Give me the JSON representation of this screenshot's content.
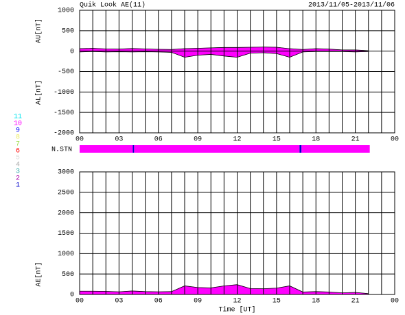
{
  "title": "Quik Look AE(11)",
  "date_range": "2013/11/05-2013/11/06",
  "station_legend": [
    {
      "label": "11",
      "color": "#00e5ee"
    },
    {
      "label": "10",
      "color": "#ff00ff"
    },
    {
      "label": "9",
      "color": "#0000ff"
    },
    {
      "label": "8",
      "color": "#eeee66"
    },
    {
      "label": "7",
      "color": "#99dd44"
    },
    {
      "label": "6",
      "color": "#ff0000"
    },
    {
      "label": "5",
      "color": "#dddddd"
    },
    {
      "label": "4",
      "color": "#aaaaaa"
    },
    {
      "label": "3",
      "color": "#33aaaa"
    },
    {
      "label": "2",
      "color": "#aa00aa"
    },
    {
      "label": "1",
      "color": "#0000cc"
    }
  ],
  "n_stn": {
    "label": "N.STN",
    "segments": [
      {
        "x0": 0,
        "x1": 4.05,
        "color": "#ff00ff"
      },
      {
        "x0": 4.05,
        "x1": 4.15,
        "color": "#0000cc"
      },
      {
        "x0": 4.15,
        "x1": 16.75,
        "color": "#ff00ff"
      },
      {
        "x0": 16.75,
        "x1": 16.9,
        "color": "#0000cc"
      },
      {
        "x0": 16.9,
        "x1": 22.1,
        "color": "#ff00ff"
      }
    ]
  },
  "chart_data": [
    {
      "type": "area",
      "ylabels": [
        "AU[nT]",
        "AL[nT]"
      ],
      "xlim": [
        0,
        24
      ],
      "xticks": [
        {
          "value": 0,
          "label": "00"
        },
        {
          "value": 3,
          "label": "03"
        },
        {
          "value": 6,
          "label": "06"
        },
        {
          "value": 9,
          "label": "09"
        },
        12,
        15,
        18,
        21,
        {
          "value": 24,
          "label": "00"
        }
      ],
      "minor_xticks": [
        1,
        2,
        4,
        5,
        7,
        8,
        10,
        11,
        13,
        14,
        16,
        17,
        19,
        20,
        22,
        23
      ],
      "ylim": [
        -2000,
        1000
      ],
      "yticks": [
        1000,
        500,
        0,
        -500,
        -1000,
        -1500,
        -2000
      ],
      "x": [
        0,
        1,
        2,
        3,
        4,
        5,
        6,
        7,
        8,
        9,
        10,
        11,
        12,
        13,
        14,
        15,
        16,
        17,
        18,
        19,
        20,
        21,
        22
      ],
      "series": [
        {
          "color": "#ff00ff",
          "values": [
            60,
            70,
            55,
            50,
            65,
            55,
            45,
            40,
            60,
            70,
            80,
            90,
            90,
            95,
            100,
            95,
            60,
            40,
            60,
            50,
            30,
            30,
            10
          ]
        },
        {
          "color": "#ff00ff",
          "values": [
            -20,
            -10,
            -20,
            -15,
            -20,
            -15,
            -20,
            -30,
            -150,
            -100,
            -80,
            -120,
            -150,
            -50,
            -40,
            -60,
            -150,
            -20,
            -10,
            -10,
            -10,
            -20,
            -10
          ]
        }
      ]
    },
    {
      "type": "area",
      "ylabels": [
        "AE[nT]"
      ],
      "xlabel": "Time [UT]",
      "xlim": [
        0,
        24
      ],
      "xticks": [
        {
          "value": 0,
          "label": "00"
        },
        {
          "value": 3,
          "label": "03"
        },
        {
          "value": 6,
          "label": "06"
        },
        {
          "value": 9,
          "label": "09"
        },
        12,
        15,
        18,
        21,
        {
          "value": 24,
          "label": "00"
        }
      ],
      "minor_xticks": [
        1,
        2,
        4,
        5,
        7,
        8,
        10,
        11,
        13,
        14,
        16,
        17,
        19,
        20,
        22,
        23
      ],
      "ylim": [
        0,
        3000
      ],
      "yticks": [
        3000,
        2500,
        2000,
        1500,
        1000,
        500,
        0
      ],
      "x": [
        0,
        1,
        2,
        3,
        4,
        5,
        6,
        7,
        8,
        9,
        10,
        11,
        12,
        13,
        14,
        15,
        16,
        17,
        18,
        19,
        20,
        21,
        22
      ],
      "series": [
        {
          "color": "#ff00ff",
          "values": [
            80,
            80,
            75,
            65,
            85,
            70,
            65,
            70,
            210,
            170,
            160,
            210,
            240,
            145,
            140,
            155,
            210,
            60,
            70,
            60,
            40,
            50,
            20
          ]
        }
      ]
    }
  ]
}
